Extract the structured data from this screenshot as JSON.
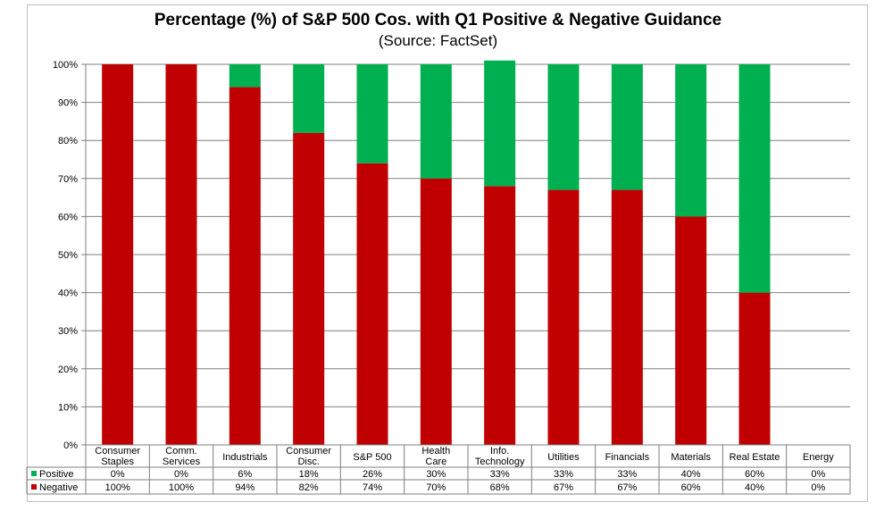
{
  "chart_data": {
    "type": "bar",
    "stacked": true,
    "title": "Percentage (%) of S&P 500 Cos. with Q1 Positive & Negative Guidance",
    "subtitle": "(Source: FactSet)",
    "categories": [
      [
        "Consumer",
        "Staples"
      ],
      [
        "Comm.",
        "Services"
      ],
      [
        "Industrials"
      ],
      [
        "Consumer",
        "Disc."
      ],
      [
        "S&P 500"
      ],
      [
        "Health",
        "Care"
      ],
      [
        "Info.",
        "Technology"
      ],
      [
        "Utilities"
      ],
      [
        "Financials"
      ],
      [
        "Materials"
      ],
      [
        "Real Estate"
      ],
      [
        "Energy"
      ]
    ],
    "series": [
      {
        "name": "Positive",
        "color": "#00b050",
        "values": [
          0,
          0,
          6,
          18,
          26,
          30,
          33,
          33,
          33,
          40,
          60,
          0
        ],
        "labels": [
          "0%",
          "0%",
          "6%",
          "18%",
          "26%",
          "30%",
          "33%",
          "33%",
          "33%",
          "40%",
          "60%",
          "0%"
        ]
      },
      {
        "name": "Negative",
        "color": "#c00000",
        "values": [
          100,
          100,
          94,
          82,
          74,
          70,
          68,
          67,
          67,
          60,
          40,
          0
        ],
        "labels": [
          "100%",
          "100%",
          "94%",
          "82%",
          "74%",
          "70%",
          "68%",
          "67%",
          "67%",
          "60%",
          "40%",
          "0%"
        ]
      }
    ],
    "ylim": [
      0,
      100
    ],
    "yticks": [
      "0%",
      "10%",
      "20%",
      "30%",
      "40%",
      "50%",
      "60%",
      "70%",
      "80%",
      "90%",
      "100%"
    ],
    "grid": true,
    "legend": "data-table"
  }
}
